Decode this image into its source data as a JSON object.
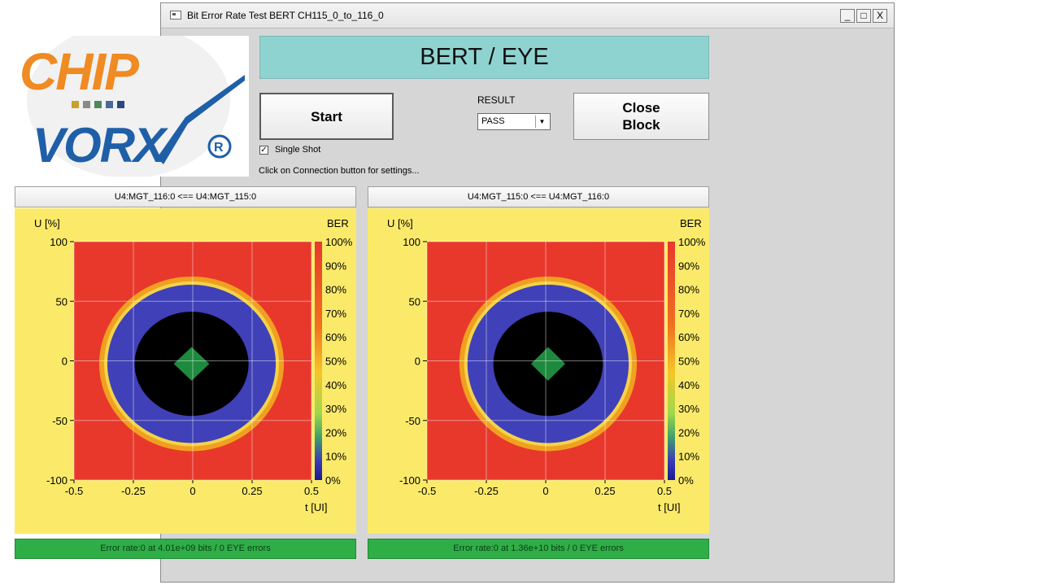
{
  "window": {
    "title": "Bit Error Rate Test BERT CH115_0_to_116_0",
    "minimize": "_",
    "maximize": "□",
    "close": "X"
  },
  "logo": {
    "line1": "CHIP",
    "line2": "VORX",
    "registered": "®"
  },
  "banner": "BERT / EYE",
  "controls": {
    "start_label": "Start",
    "result_label": "RESULT",
    "result_value": "PASS",
    "close_label_line1": "Close",
    "close_label_line2": "Block",
    "single_shot_label": "Single Shot",
    "single_shot_checked": true,
    "hint": "Click on Connection button for settings..."
  },
  "plots": [
    {
      "header": "U4:MGT_116:0 <== U4:MGT_115:0",
      "status": "Error rate:0 at 4.01e+09 bits / 0 EYE errors"
    },
    {
      "header": "U4:MGT_115:0 <== U4:MGT_116:0",
      "status": "Error rate:0 at 1.36e+10 bits / 0 EYE errors"
    }
  ],
  "chart_data": [
    {
      "type": "heatmap",
      "title": "",
      "xlabel": "t [UI]",
      "ylabel": "U [%]",
      "colorbar_label": "BER",
      "xlim": [
        -0.5,
        0.5
      ],
      "ylim": [
        -100,
        100
      ],
      "x_ticks": [
        "-0.5",
        "-0.25",
        "0",
        "0.25",
        "0.5"
      ],
      "y_ticks": [
        "100",
        "50",
        "0",
        "-50",
        "-100"
      ],
      "colorbar_ticks": [
        "100%",
        "90%",
        "80%",
        "70%",
        "60%",
        "50%",
        "40%",
        "30%",
        "20%",
        "10%",
        "0%"
      ],
      "eye_opening": {
        "t_range": [
          -0.38,
          0.37
        ],
        "u_range": [
          -73,
          68
        ]
      },
      "colors": {
        "outside": "#e8382c",
        "edge": "#f0a020",
        "eye": "#4040b8",
        "core": "#000000",
        "center": "#1e8a3e"
      }
    },
    {
      "type": "heatmap",
      "title": "",
      "xlabel": "t [UI]",
      "ylabel": "U [%]",
      "colorbar_label": "BER",
      "xlim": [
        -0.5,
        0.5
      ],
      "ylim": [
        -100,
        100
      ],
      "x_ticks": [
        "-0.5",
        "-0.25",
        "0",
        "0.25",
        "0.5"
      ],
      "y_ticks": [
        "100",
        "50",
        "0",
        "-50",
        "-100"
      ],
      "colorbar_ticks": [
        "100%",
        "90%",
        "80%",
        "70%",
        "60%",
        "50%",
        "40%",
        "30%",
        "20%",
        "10%",
        "0%"
      ],
      "eye_opening": {
        "t_range": [
          -0.35,
          0.37
        ],
        "u_range": [
          -73,
          68
        ]
      },
      "colors": {
        "outside": "#e8382c",
        "edge": "#f0a020",
        "eye": "#4040b8",
        "core": "#000000",
        "center": "#1e8a3e"
      }
    }
  ]
}
